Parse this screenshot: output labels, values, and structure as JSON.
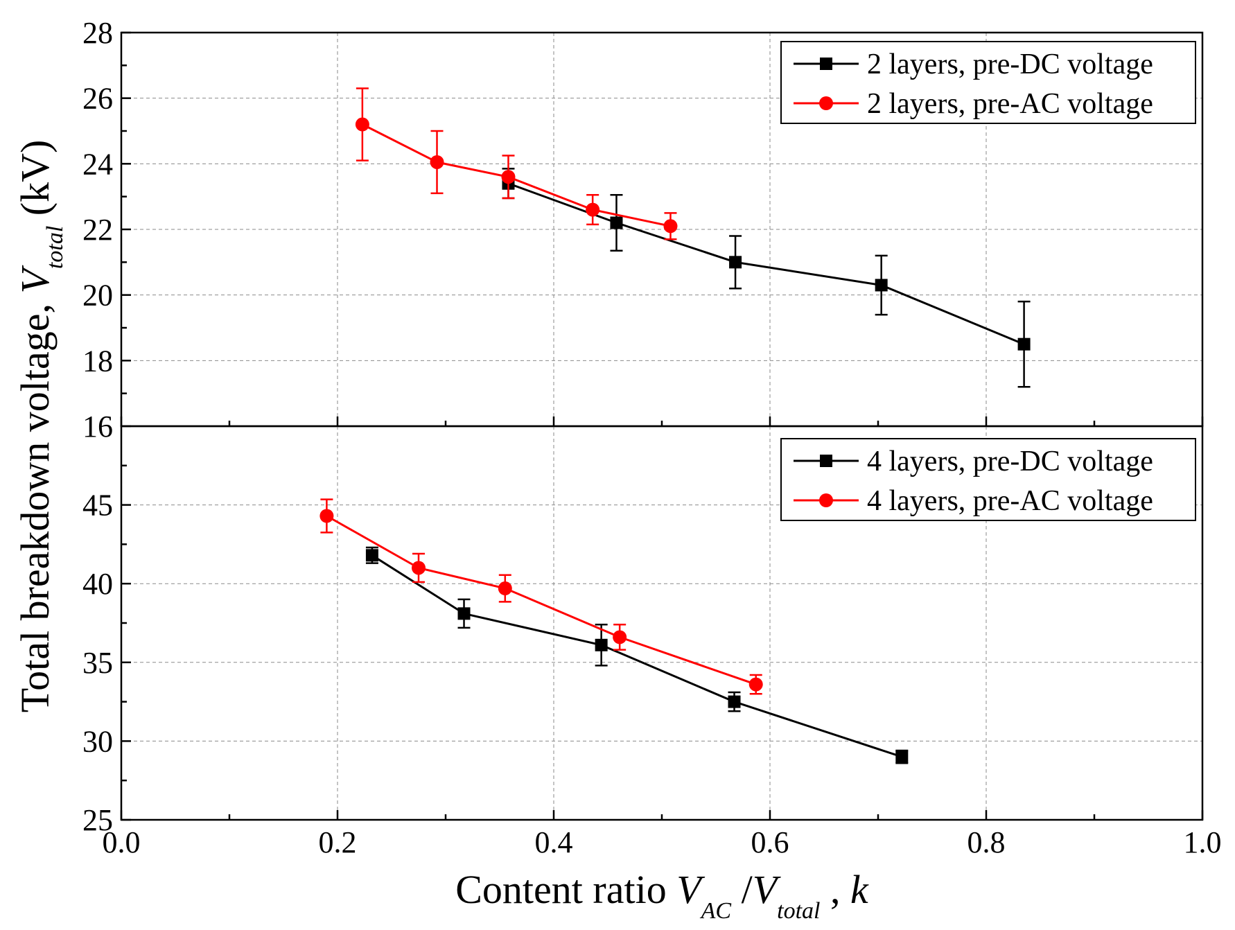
{
  "chart_data": [
    {
      "type": "line",
      "panel": "top",
      "xlim": [
        0.0,
        1.0
      ],
      "ylim": [
        16,
        28
      ],
      "y_ticks": [
        16,
        18,
        20,
        22,
        24,
        26,
        28
      ],
      "y_tick_labels": [
        "16",
        "18",
        "20",
        "22",
        "24",
        "26",
        "28"
      ],
      "grid": true,
      "legend_position": "top-right",
      "series": [
        {
          "name": "2 layers, pre-DC voltage",
          "color": "#000000",
          "marker": "square",
          "x": [
            0.358,
            0.458,
            0.568,
            0.703,
            0.835
          ],
          "y": [
            23.4,
            22.2,
            21.0,
            20.3,
            18.5
          ],
          "err": [
            0.45,
            0.85,
            0.8,
            0.9,
            1.3
          ]
        },
        {
          "name": "2 layers, pre-AC voltage",
          "color": "#ff0000",
          "marker": "circle",
          "x": [
            0.223,
            0.292,
            0.358,
            0.436,
            0.508
          ],
          "y": [
            25.2,
            24.05,
            23.6,
            22.6,
            22.1
          ],
          "err": [
            1.1,
            0.95,
            0.65,
            0.45,
            0.4
          ]
        }
      ]
    },
    {
      "type": "line",
      "panel": "bottom",
      "xlim": [
        0.0,
        1.0
      ],
      "ylim": [
        25,
        50
      ],
      "y_ticks": [
        25,
        30,
        35,
        40,
        45
      ],
      "y_tick_labels": [
        "25",
        "30",
        "35",
        "40",
        "45"
      ],
      "grid": true,
      "legend_position": "top-right",
      "series": [
        {
          "name": "4 layers, pre-DC voltage",
          "color": "#000000",
          "marker": "square",
          "x": [
            0.232,
            0.317,
            0.444,
            0.567,
            0.722
          ],
          "y": [
            41.8,
            38.1,
            36.1,
            32.5,
            29.0
          ],
          "err": [
            0.5,
            0.9,
            1.3,
            0.6,
            0.4
          ]
        },
        {
          "name": "4 layers, pre-AC voltage",
          "color": "#ff0000",
          "marker": "circle",
          "x": [
            0.19,
            0.275,
            0.355,
            0.461,
            0.587
          ],
          "y": [
            44.3,
            41.0,
            39.7,
            36.6,
            33.6
          ],
          "err": [
            1.05,
            0.9,
            0.85,
            0.8,
            0.6
          ]
        }
      ]
    }
  ],
  "x_axis": {
    "ticks": [
      0.0,
      0.2,
      0.4,
      0.6,
      0.8,
      1.0
    ],
    "tick_labels": [
      "0.0",
      "0.2",
      "0.4",
      "0.6",
      "0.8",
      "1.0"
    ],
    "label_prefix": "Content ratio ",
    "label_v1": "V",
    "label_sub1": "AC",
    "label_slash": " /",
    "label_v2": "V",
    "label_sub2": "total",
    "label_suffix": " , ",
    "label_k": "k"
  },
  "y_axis": {
    "label_prefix": "Total breakdown voltage,  ",
    "label_v": "V",
    "label_sub": "total",
    "label_suffix": " (kV)"
  }
}
